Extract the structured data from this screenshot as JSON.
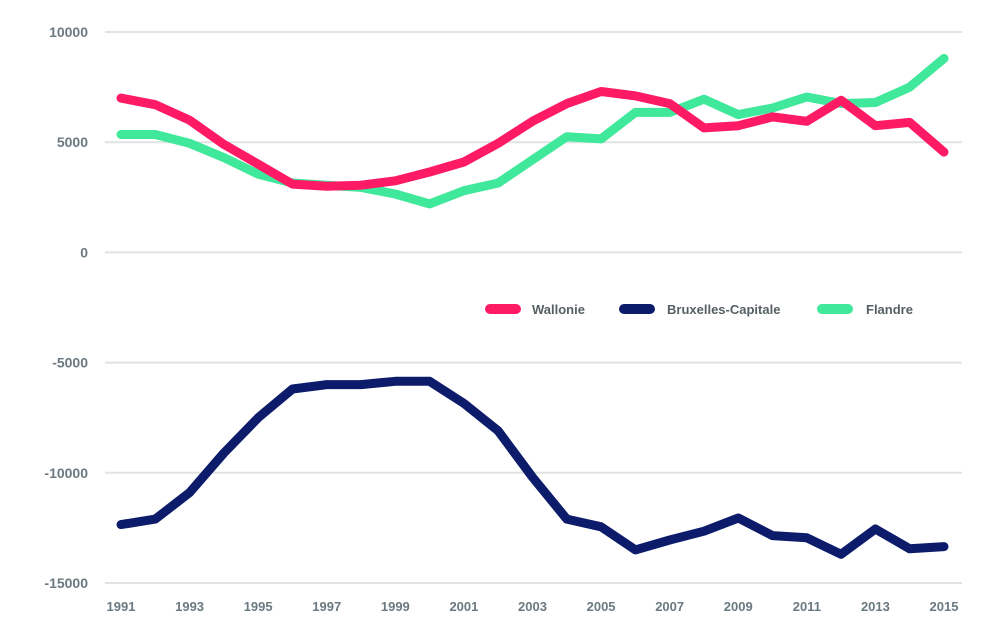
{
  "chart_data": {
    "type": "line",
    "title": "",
    "xlabel": "",
    "ylabel": "",
    "x": [
      1991,
      1992,
      1993,
      1994,
      1995,
      1996,
      1997,
      1998,
      1999,
      2000,
      2001,
      2002,
      2003,
      2004,
      2005,
      2006,
      2007,
      2008,
      2009,
      2010,
      2011,
      2012,
      2013,
      2014,
      2015
    ],
    "x_tick_labels": [
      "1991",
      "1993",
      "1995",
      "1997",
      "1999",
      "2001",
      "2003",
      "2005",
      "2007",
      "2009",
      "2011",
      "2013",
      "2015"
    ],
    "y_ticks": [
      10000,
      5000,
      0,
      -5000,
      -10000,
      -15000
    ],
    "y_tick_labels": [
      "10000",
      "5000",
      "0",
      "-5000",
      "-10000",
      "-15000"
    ],
    "ylim": [
      -15000,
      10000
    ],
    "grid": true,
    "legend_position": "right-center",
    "series": [
      {
        "name": "Wallonie",
        "color": "#ff1a66",
        "values": [
          7000,
          6700,
          6000,
          4900,
          4000,
          3100,
          3000,
          3050,
          3250,
          3650,
          4100,
          4950,
          5950,
          6750,
          7300,
          7100,
          6750,
          5650,
          5750,
          6150,
          5950,
          6900,
          5750,
          5900,
          4550
        ]
      },
      {
        "name": "Bruxelles-Capitale",
        "color": "#0d1b6b",
        "values": [
          -12350,
          -12100,
          -10900,
          -9100,
          -7500,
          -6200,
          -6000,
          -6000,
          -5850,
          -5850,
          -6850,
          -8100,
          -10200,
          -12100,
          -12450,
          -13500,
          -13050,
          -12650,
          -12050,
          -12850,
          -12950,
          -13700,
          -12550,
          -13450,
          -13350
        ]
      },
      {
        "name": "Flandre",
        "color": "#3fe89a",
        "values": [
          5350,
          5350,
          4950,
          4300,
          3550,
          3150,
          3050,
          2950,
          2650,
          2200,
          2800,
          3150,
          4200,
          5250,
          5150,
          6350,
          6350,
          6950,
          6250,
          6550,
          7050,
          6750,
          6800,
          7500,
          8800
        ]
      }
    ]
  }
}
